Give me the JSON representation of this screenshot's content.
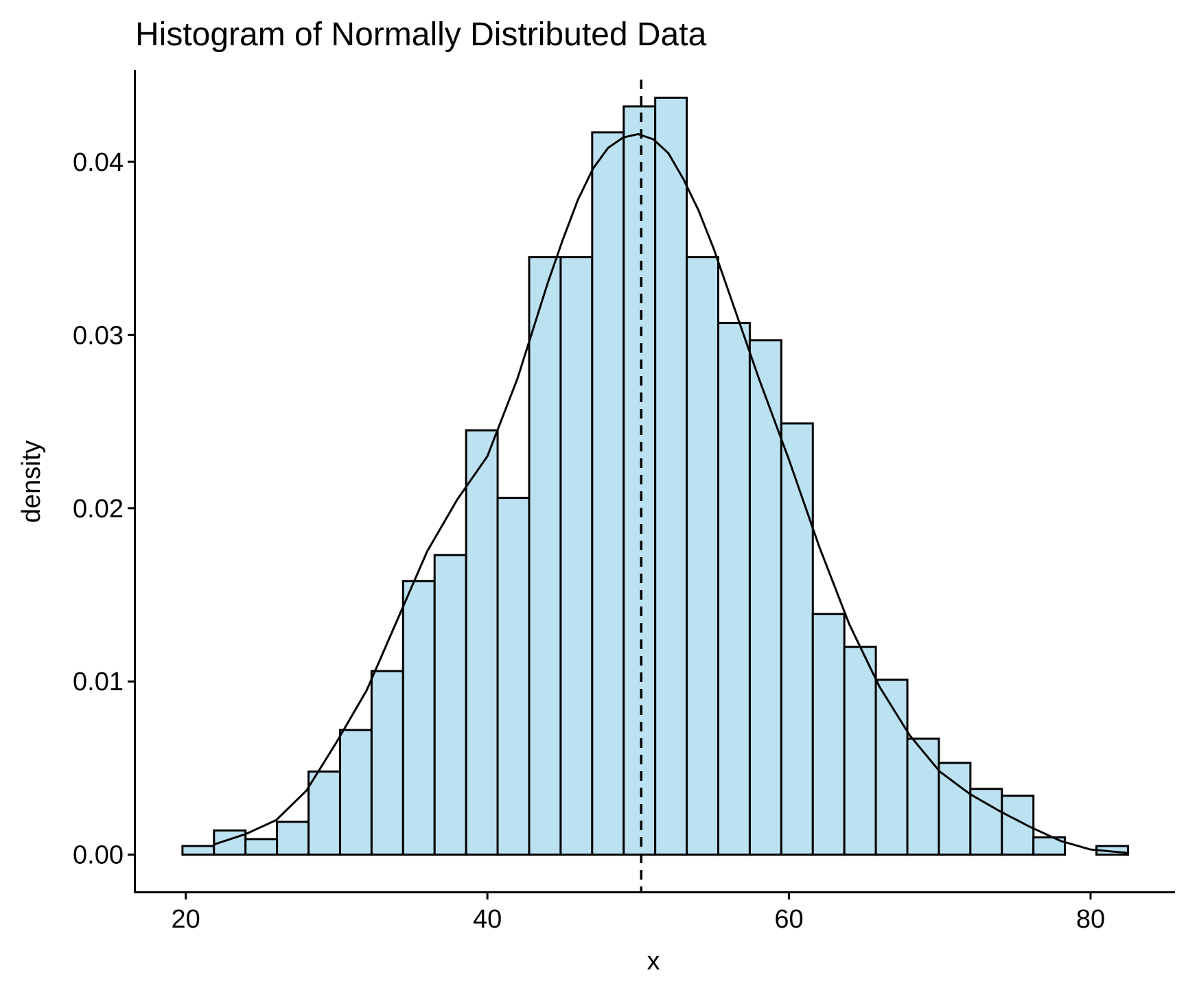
{
  "chart_data": {
    "type": "bar",
    "title": "Histogram of Normally Distributed Data",
    "xlabel": "x",
    "ylabel": "density",
    "xlim": [
      16.6,
      85.6
    ],
    "ylim": [
      -0.00215,
      0.0453
    ],
    "x_ticks": [
      20,
      40,
      60,
      80
    ],
    "y_ticks": [
      0.0,
      0.01,
      0.02,
      0.03,
      0.04
    ],
    "x_tick_labels": [
      "20",
      "40",
      "60",
      "80"
    ],
    "y_tick_labels": [
      "0.00",
      "0.01",
      "0.02",
      "0.03",
      "0.04"
    ],
    "bin_width": 2.09,
    "bins": [
      {
        "x0": 19.78,
        "x1": 21.87,
        "density": 0.0005
      },
      {
        "x0": 21.87,
        "x1": 23.96,
        "density": 0.0014
      },
      {
        "x0": 23.96,
        "x1": 26.05,
        "density": 0.0009
      },
      {
        "x0": 26.05,
        "x1": 28.14,
        "density": 0.0019
      },
      {
        "x0": 28.14,
        "x1": 30.23,
        "density": 0.0048
      },
      {
        "x0": 30.23,
        "x1": 32.32,
        "density": 0.0072
      },
      {
        "x0": 32.32,
        "x1": 34.41,
        "density": 0.0106
      },
      {
        "x0": 34.41,
        "x1": 36.5,
        "density": 0.0158
      },
      {
        "x0": 36.5,
        "x1": 38.59,
        "density": 0.0173
      },
      {
        "x0": 38.59,
        "x1": 40.68,
        "density": 0.0245
      },
      {
        "x0": 40.68,
        "x1": 42.77,
        "density": 0.0206
      },
      {
        "x0": 42.77,
        "x1": 44.86,
        "density": 0.0345
      },
      {
        "x0": 44.86,
        "x1": 46.95,
        "density": 0.0345
      },
      {
        "x0": 46.95,
        "x1": 49.04,
        "density": 0.0417
      },
      {
        "x0": 49.04,
        "x1": 51.13,
        "density": 0.0432
      },
      {
        "x0": 51.13,
        "x1": 53.22,
        "density": 0.0437
      },
      {
        "x0": 53.22,
        "x1": 55.31,
        "density": 0.0345
      },
      {
        "x0": 55.31,
        "x1": 57.4,
        "density": 0.0307
      },
      {
        "x0": 57.4,
        "x1": 59.49,
        "density": 0.0297
      },
      {
        "x0": 59.49,
        "x1": 61.58,
        "density": 0.0249
      },
      {
        "x0": 61.58,
        "x1": 63.67,
        "density": 0.0139
      },
      {
        "x0": 63.67,
        "x1": 65.76,
        "density": 0.012
      },
      {
        "x0": 65.76,
        "x1": 67.85,
        "density": 0.0101
      },
      {
        "x0": 67.85,
        "x1": 69.94,
        "density": 0.0067
      },
      {
        "x0": 69.94,
        "x1": 72.03,
        "density": 0.0053
      },
      {
        "x0": 72.03,
        "x1": 74.12,
        "density": 0.0038
      },
      {
        "x0": 74.12,
        "x1": 76.21,
        "density": 0.0034
      },
      {
        "x0": 76.21,
        "x1": 78.3,
        "density": 0.001
      },
      {
        "x0": 78.3,
        "x1": 80.39,
        "density": 0.0
      },
      {
        "x0": 80.39,
        "x1": 82.48,
        "density": 0.0005
      }
    ],
    "density_curve": {
      "x": [
        21.9,
        24,
        26,
        28,
        30,
        32,
        34,
        36,
        38,
        40,
        42,
        44,
        45,
        46,
        47,
        48,
        49,
        50,
        51,
        52,
        53,
        54,
        55,
        56,
        57,
        58,
        60,
        62,
        64,
        66,
        68,
        70,
        72,
        74,
        76,
        78,
        80,
        82.5
      ],
      "y": [
        0.0006,
        0.0012,
        0.002,
        0.0037,
        0.0065,
        0.0095,
        0.0135,
        0.0175,
        0.0205,
        0.023,
        0.0275,
        0.033,
        0.0355,
        0.0378,
        0.0396,
        0.0408,
        0.0414,
        0.0416,
        0.0413,
        0.0405,
        0.039,
        0.0372,
        0.035,
        0.0325,
        0.03,
        0.0275,
        0.0228,
        0.0178,
        0.0133,
        0.0097,
        0.0069,
        0.0048,
        0.0035,
        0.0025,
        0.0016,
        0.0008,
        0.0003,
        0.0001
      ]
    },
    "mean_line_x": 50.2,
    "grid": false,
    "colors": {
      "bar_fill": "#bce2f2",
      "bar_edge": "#000000",
      "line": "#000000",
      "background": "#ffffff"
    }
  }
}
